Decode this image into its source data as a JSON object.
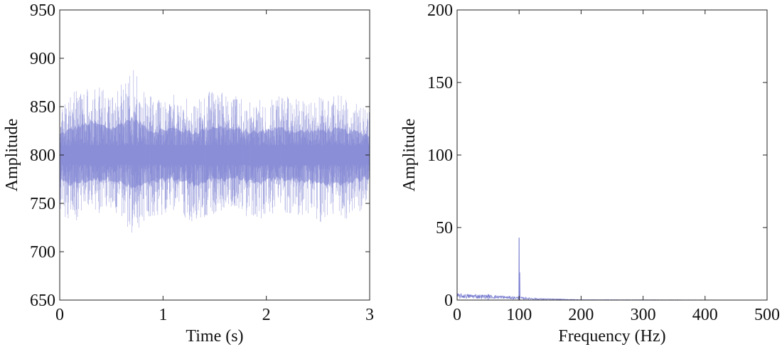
{
  "colors": {
    "series": "#7b7fd0",
    "fill": "#b8bbe6",
    "axis": "#222222",
    "background": "#ffffff"
  },
  "chart_data": [
    {
      "type": "line",
      "title": "",
      "xlabel": "Time (s)",
      "ylabel": "Amplitude",
      "xlim": [
        0,
        3
      ],
      "ylim": [
        650,
        950
      ],
      "xticks": [
        0,
        1,
        2,
        3
      ],
      "yticks": [
        650,
        700,
        750,
        800,
        850,
        900,
        950
      ],
      "grid": false,
      "legend": "none",
      "series": [
        {
          "mean": 800,
          "envelope_time": [
            0,
            0.1,
            0.3,
            0.5,
            0.7,
            0.9,
            1.1,
            1.3,
            1.5,
            1.7,
            1.9,
            2.1,
            2.3,
            2.5,
            2.7,
            2.9,
            3.0
          ],
          "envelope_upper": [
            850,
            862,
            880,
            865,
            890,
            858,
            865,
            855,
            870,
            862,
            855,
            866,
            858,
            860,
            862,
            855,
            848
          ],
          "envelope_lower": [
            735,
            728,
            738,
            742,
            718,
            732,
            742,
            728,
            738,
            745,
            728,
            742,
            738,
            730,
            728,
            740,
            745
          ]
        }
      ]
    },
    {
      "type": "line",
      "title": "",
      "xlabel": "Frequency (Hz)",
      "ylabel": "Amplitude",
      "xlim": [
        0,
        500
      ],
      "ylim": [
        0,
        200
      ],
      "xticks": [
        0,
        100,
        200,
        300,
        400,
        500
      ],
      "yticks": [
        0,
        50,
        100,
        150,
        200
      ],
      "grid": false,
      "legend": "none",
      "series": [
        {
          "peaks": [
            {
              "x": 100,
              "y": 43
            },
            {
              "x": 101,
              "y": 19
            },
            {
              "x": 50,
              "y": 4
            }
          ],
          "noise_floor": [
            {
              "x": 0,
              "y": 3
            },
            {
              "x": 50,
              "y": 2.5
            },
            {
              "x": 100,
              "y": 1.5
            },
            {
              "x": 130,
              "y": 0.8
            },
            {
              "x": 200,
              "y": 0.2
            },
            {
              "x": 500,
              "y": 0
            }
          ]
        }
      ]
    }
  ]
}
